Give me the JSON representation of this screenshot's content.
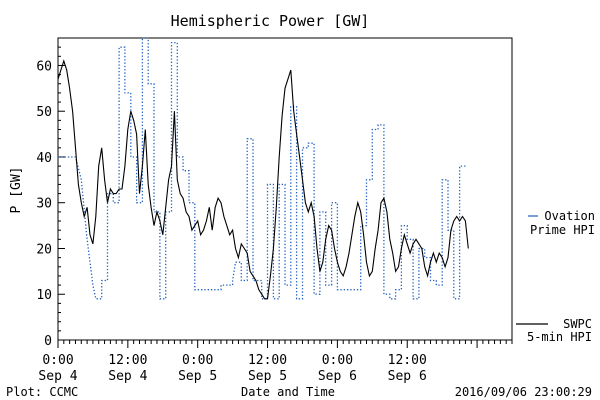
{
  "page": {
    "background": "#ffffff"
  },
  "footer": {
    "left": "Plot: CCMC",
    "center": "Date and Time",
    "right": "2016/09/06 23:00:29"
  },
  "colors": {
    "axis": "#000000",
    "swpc_series": "#000000",
    "ovation_series": "#1f5fbf"
  },
  "chart_data": {
    "type": "line",
    "title": "Hemispheric Power [GW]",
    "xlabel": "Date and Time",
    "ylabel": "P [GW]",
    "x_units": "hours since 2016-09-04 00:00 UT",
    "xlim": [
      0,
      78
    ],
    "ylim": [
      0,
      66
    ],
    "y_ticks": [
      0,
      10,
      20,
      30,
      40,
      50,
      60
    ],
    "x_ticks": [
      {
        "hour": 0,
        "time": "0:00",
        "date": "Sep 4"
      },
      {
        "hour": 12,
        "time": "12:00",
        "date": "Sep 4"
      },
      {
        "hour": 24,
        "time": "0:00",
        "date": "Sep 5"
      },
      {
        "hour": 36,
        "time": "12:00",
        "date": "Sep 5"
      },
      {
        "hour": 48,
        "time": "0:00",
        "date": "Sep 6"
      },
      {
        "hour": 60,
        "time": "12:00",
        "date": "Sep 6"
      }
    ],
    "grid": false,
    "legend_position": "right",
    "series": [
      {
        "name": "SWPC 5-min HPI",
        "legend_lines": [
          "SWPC",
          "5-min HPI"
        ],
        "style": "solid",
        "color": "#000000",
        "points": [
          [
            0,
            57
          ],
          [
            0.5,
            59
          ],
          [
            1,
            61
          ],
          [
            1.5,
            59
          ],
          [
            2,
            55
          ],
          [
            2.5,
            50
          ],
          [
            3,
            42
          ],
          [
            3.5,
            34
          ],
          [
            4,
            30
          ],
          [
            4.5,
            27
          ],
          [
            5,
            29
          ],
          [
            5.5,
            23
          ],
          [
            6,
            21
          ],
          [
            6.5,
            27
          ],
          [
            7,
            38
          ],
          [
            7.5,
            42
          ],
          [
            8,
            35
          ],
          [
            8.5,
            30
          ],
          [
            9,
            33
          ],
          [
            9.5,
            32
          ],
          [
            10,
            32
          ],
          [
            10.5,
            33
          ],
          [
            11,
            33
          ],
          [
            11.5,
            38
          ],
          [
            12,
            46
          ],
          [
            12.5,
            50
          ],
          [
            13,
            48
          ],
          [
            13.5,
            45
          ],
          [
            14,
            32
          ],
          [
            14.5,
            38
          ],
          [
            15,
            46
          ],
          [
            15.5,
            34
          ],
          [
            16,
            29
          ],
          [
            16.5,
            25
          ],
          [
            17,
            28
          ],
          [
            17.5,
            26
          ],
          [
            18,
            23
          ],
          [
            18.5,
            29
          ],
          [
            19,
            35
          ],
          [
            19.5,
            38
          ],
          [
            20,
            50
          ],
          [
            20.5,
            35
          ],
          [
            21,
            32
          ],
          [
            21.5,
            31
          ],
          [
            22,
            28
          ],
          [
            22.5,
            27
          ],
          [
            23,
            24
          ],
          [
            23.5,
            25
          ],
          [
            24,
            26
          ],
          [
            24.5,
            23
          ],
          [
            25,
            24
          ],
          [
            25.5,
            26
          ],
          [
            26,
            29
          ],
          [
            26.5,
            24
          ],
          [
            27,
            29
          ],
          [
            27.5,
            31
          ],
          [
            28,
            30
          ],
          [
            28.5,
            27
          ],
          [
            29,
            25
          ],
          [
            29.5,
            23
          ],
          [
            30,
            24
          ],
          [
            30.5,
            20
          ],
          [
            31,
            18
          ],
          [
            31.5,
            21
          ],
          [
            32,
            20
          ],
          [
            32.5,
            19
          ],
          [
            33,
            15
          ],
          [
            33.5,
            14
          ],
          [
            34,
            13
          ],
          [
            34.5,
            11
          ],
          [
            35,
            10
          ],
          [
            35.5,
            9
          ],
          [
            36,
            9
          ],
          [
            36.5,
            14
          ],
          [
            37,
            20
          ],
          [
            37.5,
            29
          ],
          [
            38,
            40
          ],
          [
            38.5,
            49
          ],
          [
            39,
            55
          ],
          [
            39.5,
            57
          ],
          [
            40,
            59
          ],
          [
            40.5,
            50
          ],
          [
            41,
            45
          ],
          [
            41.5,
            40
          ],
          [
            42,
            35
          ],
          [
            42.5,
            30
          ],
          [
            43,
            28
          ],
          [
            43.5,
            30
          ],
          [
            44,
            27
          ],
          [
            44.5,
            20
          ],
          [
            45,
            15
          ],
          [
            45.5,
            17
          ],
          [
            46,
            22
          ],
          [
            46.5,
            25
          ],
          [
            47,
            24
          ],
          [
            47.5,
            20
          ],
          [
            48,
            17
          ],
          [
            48.5,
            15
          ],
          [
            49,
            14
          ],
          [
            49.5,
            16
          ],
          [
            50,
            19
          ],
          [
            50.5,
            23
          ],
          [
            51,
            27
          ],
          [
            51.5,
            30
          ],
          [
            52,
            28
          ],
          [
            52.5,
            23
          ],
          [
            53,
            17
          ],
          [
            53.5,
            14
          ],
          [
            54,
            15
          ],
          [
            54.5,
            20
          ],
          [
            55,
            24
          ],
          [
            55.5,
            30
          ],
          [
            56,
            31
          ],
          [
            56.5,
            28
          ],
          [
            57,
            22
          ],
          [
            57.5,
            19
          ],
          [
            58,
            15
          ],
          [
            58.5,
            16
          ],
          [
            59,
            20
          ],
          [
            59.5,
            23
          ],
          [
            60,
            21
          ],
          [
            60.5,
            19
          ],
          [
            61,
            21
          ],
          [
            61.5,
            22
          ],
          [
            62,
            21
          ],
          [
            62.5,
            20
          ],
          [
            63,
            16
          ],
          [
            63.5,
            14
          ],
          [
            64,
            17
          ],
          [
            64.5,
            19
          ],
          [
            65,
            17
          ],
          [
            65.5,
            19
          ],
          [
            66,
            18
          ],
          [
            66.5,
            16
          ],
          [
            67,
            18
          ],
          [
            67.5,
            24
          ],
          [
            68,
            26
          ],
          [
            68.5,
            27
          ],
          [
            69,
            26
          ],
          [
            69.5,
            27
          ],
          [
            70,
            26
          ],
          [
            70.5,
            20
          ]
        ]
      },
      {
        "name": "Ovation Prime HPI",
        "legend_lines": [
          "Ovation",
          "Prime HPI"
        ],
        "style": "dotted",
        "color": "#1f5fbf",
        "points": [
          [
            0,
            40
          ],
          [
            3,
            40
          ],
          [
            4,
            35
          ],
          [
            5,
            22
          ],
          [
            6,
            12
          ],
          [
            6.5,
            9
          ],
          [
            7.5,
            9
          ],
          [
            7.5,
            13
          ],
          [
            8.5,
            13
          ],
          [
            8.5,
            32
          ],
          [
            9.5,
            32
          ],
          [
            9.5,
            30
          ],
          [
            10.5,
            30
          ],
          [
            10.5,
            64
          ],
          [
            11.5,
            64
          ],
          [
            11.5,
            54
          ],
          [
            12.5,
            54
          ],
          [
            12.5,
            40
          ],
          [
            13.5,
            40
          ],
          [
            13.5,
            30
          ],
          [
            14.5,
            30
          ],
          [
            14.5,
            66
          ],
          [
            15.5,
            66
          ],
          [
            15.5,
            56
          ],
          [
            16.5,
            56
          ],
          [
            16.5,
            28
          ],
          [
            17.5,
            28
          ],
          [
            17.5,
            9
          ],
          [
            18.5,
            9
          ],
          [
            18.5,
            28
          ],
          [
            19.5,
            28
          ],
          [
            19.5,
            65
          ],
          [
            20.5,
            65
          ],
          [
            20.5,
            40
          ],
          [
            21.5,
            40
          ],
          [
            21.5,
            37
          ],
          [
            22.5,
            37
          ],
          [
            22.5,
            30
          ],
          [
            23.5,
            30
          ],
          [
            23.5,
            11
          ],
          [
            28,
            11
          ],
          [
            28,
            12
          ],
          [
            30,
            12
          ],
          [
            30,
            13
          ],
          [
            30.5,
            17
          ],
          [
            31.5,
            17
          ],
          [
            31.5,
            13
          ],
          [
            32.5,
            13
          ],
          [
            32.5,
            44
          ],
          [
            33.5,
            44
          ],
          [
            33.5,
            13
          ],
          [
            35,
            13
          ],
          [
            35,
            9
          ],
          [
            36,
            9
          ],
          [
            36,
            34
          ],
          [
            37,
            34
          ],
          [
            37,
            9
          ],
          [
            38,
            9
          ],
          [
            38,
            34
          ],
          [
            39,
            34
          ],
          [
            39,
            12
          ],
          [
            40,
            12
          ],
          [
            40,
            51
          ],
          [
            41,
            51
          ],
          [
            41,
            9
          ],
          [
            42,
            9
          ],
          [
            42,
            42
          ],
          [
            43,
            42
          ],
          [
            43,
            43
          ],
          [
            44,
            43
          ],
          [
            44,
            10
          ],
          [
            45,
            10
          ],
          [
            45,
            28
          ],
          [
            46,
            28
          ],
          [
            46,
            12
          ],
          [
            47,
            12
          ],
          [
            47,
            30
          ],
          [
            48,
            30
          ],
          [
            48,
            11
          ],
          [
            52,
            11
          ],
          [
            52,
            25
          ],
          [
            53,
            25
          ],
          [
            53,
            35
          ],
          [
            54,
            35
          ],
          [
            54,
            46
          ],
          [
            55,
            46
          ],
          [
            55,
            47
          ],
          [
            56,
            47
          ],
          [
            56,
            10
          ],
          [
            57,
            10
          ],
          [
            57,
            9
          ],
          [
            58,
            9
          ],
          [
            58,
            11
          ],
          [
            59,
            11
          ],
          [
            59,
            25
          ],
          [
            60,
            25
          ],
          [
            60,
            22
          ],
          [
            61,
            22
          ],
          [
            61,
            9
          ],
          [
            62,
            9
          ],
          [
            62,
            20
          ],
          [
            63,
            20
          ],
          [
            63,
            18
          ],
          [
            64,
            18
          ],
          [
            64,
            13
          ],
          [
            65,
            13
          ],
          [
            65,
            12
          ],
          [
            66,
            12
          ],
          [
            66,
            35
          ],
          [
            67,
            35
          ],
          [
            67,
            24
          ],
          [
            68,
            24
          ],
          [
            68,
            9
          ],
          [
            69,
            9
          ],
          [
            69,
            38
          ],
          [
            70,
            38
          ]
        ]
      }
    ]
  }
}
